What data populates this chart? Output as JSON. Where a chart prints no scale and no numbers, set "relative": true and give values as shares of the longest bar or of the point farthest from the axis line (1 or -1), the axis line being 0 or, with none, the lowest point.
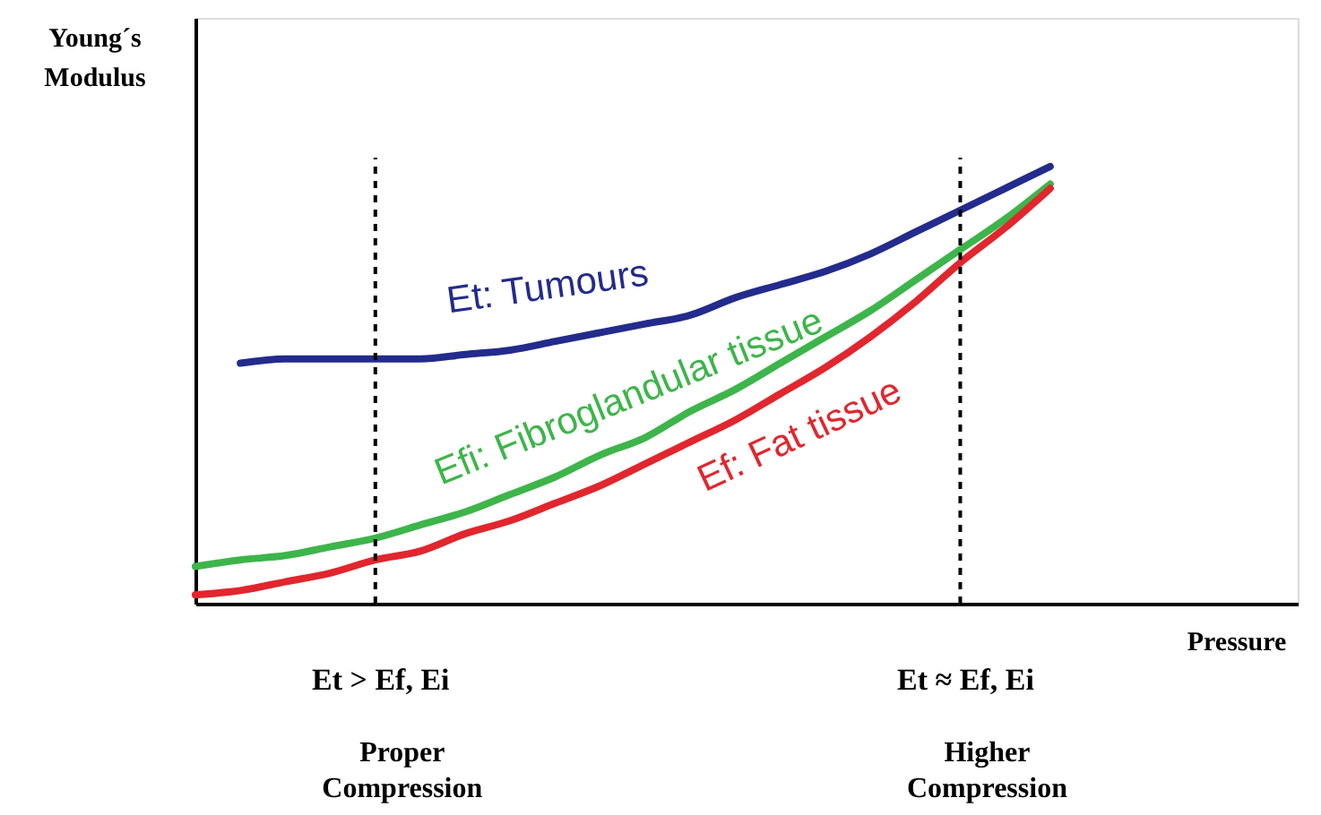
{
  "chart_data": {
    "type": "line",
    "relative": true,
    "ylabel": "Young´s Modulus",
    "xlabel": "Pressure",
    "categories": [
      null,
      null,
      null,
      null,
      null,
      null,
      null,
      null,
      null,
      null,
      null,
      null,
      null,
      null,
      null,
      null,
      null,
      null,
      null,
      null
    ],
    "series": [
      {
        "name": "Et: Tumours",
        "color": "#232b8c",
        "values": [
          null,
          0.55,
          0.56,
          0.56,
          0.56,
          0.56,
          0.57,
          0.58,
          0.6,
          0.62,
          0.64,
          0.66,
          0.7,
          0.73,
          0.76,
          0.8,
          0.85,
          0.9,
          0.95,
          1
        ]
      },
      {
        "name": "Efi: Fibroglandular tissue",
        "color": "#3db54a",
        "values": [
          0.085,
          0.1,
          0.11,
          0.13,
          0.15,
          0.18,
          0.21,
          0.25,
          0.29,
          0.34,
          0.38,
          0.44,
          0.49,
          0.55,
          0.61,
          0.67,
          0.74,
          0.81,
          0.88,
          0.96
        ]
      },
      {
        "name": "Ef: Fat tissue",
        "color": "#e1262d",
        "values": [
          0.02,
          0.03,
          0.05,
          0.07,
          0.1,
          0.12,
          0.16,
          0.19,
          0.23,
          0.27,
          0.32,
          0.37,
          0.42,
          0.48,
          0.54,
          0.61,
          0.69,
          0.78,
          0.86,
          0.95
        ]
      }
    ],
    "annotations": [
      "Et > Ef, Ei",
      "Proper Compression",
      "Et ≈ Ef, Ei",
      "Higher Compression"
    ]
  }
}
